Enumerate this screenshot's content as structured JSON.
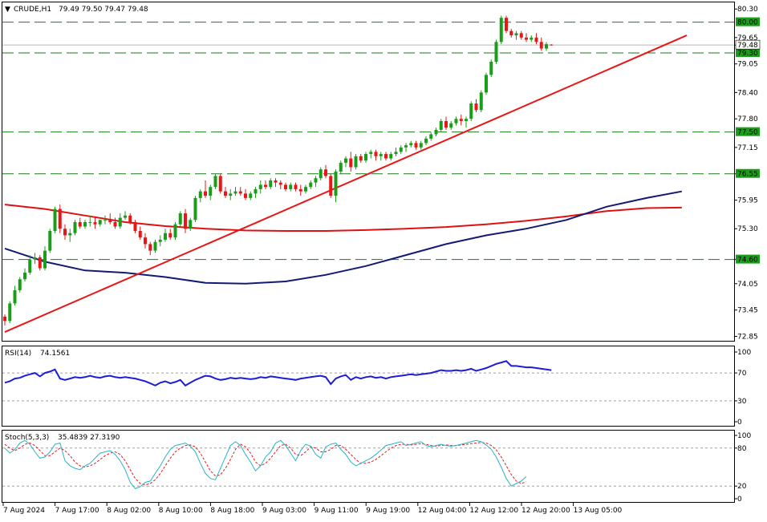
{
  "header": {
    "symbol": "CRUDE,H1",
    "ohlc": "79.49 79.50 79.47 79.48"
  },
  "colors": {
    "up": "#1a9e1a",
    "down": "#e81717",
    "ma_fast": "#131a73",
    "ma_slow": "#dd1111",
    "trendline": "#e81717",
    "rsi": "#1d1dd8",
    "stoch_main": "#26b4c8",
    "stoch_signal": "#e81717",
    "level_line": "#1a7a1a",
    "level_tag_bg": "#1a9e1a",
    "current_tag_bg": "#ffffff"
  },
  "chart_data": [
    {
      "type": "candlestick",
      "title": "CRUDE,H1",
      "ylim": [
        72.75,
        80.45
      ],
      "y_ticks": [
        "80.30",
        "79.65",
        "79.48",
        "79.05",
        "78.40",
        "77.80",
        "77.15",
        "76.55",
        "75.95",
        "75.30",
        "74.60",
        "74.05",
        "73.45",
        "72.85"
      ],
      "price_levels": [
        80.0,
        79.3,
        77.5,
        76.55,
        74.6
      ],
      "level_labels": [
        "80.00",
        "79.30",
        "77.50",
        "76.55",
        "74.60"
      ],
      "current_price": 79.48,
      "current_price_label": "79.48",
      "x_tick_labels": [
        "7 Aug 2024",
        "7 Aug 17:00",
        "8 Aug 02:00",
        "8 Aug 10:00",
        "8 Aug 18:00",
        "9 Aug 03:00",
        "9 Aug 11:00",
        "9 Aug 19:00",
        "12 Aug 04:00",
        "12 Aug 12:00",
        "12 Aug 20:00",
        "13 Aug 05:00"
      ],
      "trendline": [
        [
          0,
          72.95
        ],
        [
          136,
          79.7
        ]
      ],
      "candles": [
        [
          73.3,
          73.35,
          73.1,
          73.2
        ],
        [
          73.2,
          73.65,
          73.15,
          73.6
        ],
        [
          73.6,
          74.0,
          73.55,
          73.9
        ],
        [
          73.9,
          74.2,
          73.85,
          74.15
        ],
        [
          74.15,
          74.4,
          74.1,
          74.3
        ],
        [
          74.3,
          74.7,
          74.25,
          74.6
        ],
        [
          74.6,
          74.75,
          74.5,
          74.65
        ],
        [
          74.65,
          74.7,
          74.35,
          74.4
        ],
        [
          74.4,
          74.9,
          74.35,
          74.8
        ],
        [
          74.8,
          75.3,
          74.75,
          75.25
        ],
        [
          75.25,
          75.8,
          75.2,
          75.75
        ],
        [
          75.75,
          75.85,
          75.2,
          75.3
        ],
        [
          75.3,
          75.4,
          75.05,
          75.15
        ],
        [
          75.15,
          75.3,
          75.0,
          75.2
        ],
        [
          75.2,
          75.5,
          75.15,
          75.45
        ],
        [
          75.45,
          75.55,
          75.3,
          75.35
        ],
        [
          75.35,
          75.5,
          75.3,
          75.45
        ],
        [
          75.45,
          75.6,
          75.35,
          75.45
        ],
        [
          75.45,
          75.55,
          75.3,
          75.4
        ],
        [
          75.4,
          75.5,
          75.35,
          75.5
        ],
        [
          75.5,
          75.6,
          75.4,
          75.5
        ],
        [
          75.5,
          75.65,
          75.4,
          75.45
        ],
        [
          75.45,
          75.55,
          75.3,
          75.35
        ],
        [
          75.35,
          75.65,
          75.3,
          75.55
        ],
        [
          75.55,
          75.7,
          75.5,
          75.6
        ],
        [
          75.6,
          75.65,
          75.4,
          75.45
        ],
        [
          75.45,
          75.5,
          75.2,
          75.25
        ],
        [
          75.25,
          75.35,
          75.05,
          75.1
        ],
        [
          75.1,
          75.2,
          74.85,
          74.95
        ],
        [
          74.95,
          75.0,
          74.7,
          74.8
        ],
        [
          74.8,
          75.05,
          74.75,
          75.0
        ],
        [
          75.0,
          75.15,
          74.9,
          75.05
        ],
        [
          75.05,
          75.3,
          75.0,
          75.2
        ],
        [
          75.2,
          75.3,
          75.05,
          75.1
        ],
        [
          75.1,
          75.45,
          75.05,
          75.4
        ],
        [
          75.4,
          75.7,
          75.35,
          75.65
        ],
        [
          75.65,
          75.75,
          75.2,
          75.3
        ],
        [
          75.3,
          75.55,
          75.25,
          75.5
        ],
        [
          75.5,
          76.05,
          75.45,
          76.0
        ],
        [
          76.0,
          76.2,
          75.9,
          76.15
        ],
        [
          76.15,
          76.4,
          76.0,
          76.05
        ],
        [
          76.05,
          76.3,
          75.95,
          76.25
        ],
        [
          76.25,
          76.55,
          76.2,
          76.5
        ],
        [
          76.5,
          76.55,
          76.1,
          76.15
        ],
        [
          76.15,
          76.25,
          76.0,
          76.05
        ],
        [
          76.05,
          76.2,
          75.95,
          76.1
        ],
        [
          76.1,
          76.25,
          76.05,
          76.15
        ],
        [
          76.15,
          76.25,
          76.05,
          76.1
        ],
        [
          76.1,
          76.2,
          75.95,
          76.0
        ],
        [
          76.0,
          76.15,
          75.95,
          76.1
        ],
        [
          76.1,
          76.25,
          76.0,
          76.2
        ],
        [
          76.2,
          76.4,
          76.1,
          76.3
        ],
        [
          76.3,
          76.4,
          76.2,
          76.25
        ],
        [
          76.25,
          76.45,
          76.2,
          76.4
        ],
        [
          76.4,
          76.45,
          76.25,
          76.35
        ],
        [
          76.35,
          76.4,
          76.2,
          76.3
        ],
        [
          76.3,
          76.35,
          76.15,
          76.2
        ],
        [
          76.2,
          76.35,
          76.15,
          76.3
        ],
        [
          76.3,
          76.35,
          76.15,
          76.2
        ],
        [
          76.2,
          76.3,
          76.05,
          76.15
        ],
        [
          76.15,
          76.3,
          76.1,
          76.25
        ],
        [
          76.25,
          76.4,
          76.2,
          76.35
        ],
        [
          76.35,
          76.5,
          76.25,
          76.45
        ],
        [
          76.45,
          76.7,
          76.4,
          76.65
        ],
        [
          76.65,
          76.75,
          76.45,
          76.5
        ],
        [
          76.5,
          76.55,
          76.0,
          76.05
        ],
        [
          76.05,
          76.65,
          75.9,
          76.6
        ],
        [
          76.6,
          76.85,
          76.55,
          76.8
        ],
        [
          76.8,
          76.95,
          76.7,
          76.9
        ],
        [
          76.9,
          77.05,
          76.6,
          76.7
        ],
        [
          76.7,
          77.0,
          76.65,
          76.95
        ],
        [
          76.95,
          77.0,
          76.8,
          76.85
        ],
        [
          76.85,
          77.05,
          76.8,
          77.0
        ],
        [
          77.0,
          77.1,
          76.9,
          77.05
        ],
        [
          77.05,
          77.1,
          76.85,
          76.95
        ],
        [
          76.95,
          77.05,
          76.85,
          77.0
        ],
        [
          77.0,
          77.05,
          76.85,
          76.9
        ],
        [
          76.9,
          77.05,
          76.85,
          77.0
        ],
        [
          77.0,
          77.15,
          76.95,
          77.05
        ],
        [
          77.05,
          77.2,
          77.0,
          77.15
        ],
        [
          77.15,
          77.25,
          77.05,
          77.2
        ],
        [
          77.2,
          77.3,
          77.15,
          77.25
        ],
        [
          77.25,
          77.3,
          77.1,
          77.15
        ],
        [
          77.15,
          77.3,
          77.1,
          77.25
        ],
        [
          77.25,
          77.4,
          77.2,
          77.35
        ],
        [
          77.35,
          77.5,
          77.3,
          77.45
        ],
        [
          77.45,
          77.6,
          77.4,
          77.55
        ],
        [
          77.55,
          77.8,
          77.5,
          77.75
        ],
        [
          77.75,
          77.85,
          77.55,
          77.6
        ],
        [
          77.6,
          77.75,
          77.55,
          77.7
        ],
        [
          77.7,
          77.85,
          77.65,
          77.8
        ],
        [
          77.8,
          77.9,
          77.65,
          77.75
        ],
        [
          77.75,
          77.85,
          77.6,
          77.8
        ],
        [
          77.8,
          78.2,
          77.75,
          78.15
        ],
        [
          78.15,
          78.25,
          77.95,
          78.0
        ],
        [
          78.0,
          78.45,
          77.95,
          78.4
        ],
        [
          78.4,
          78.85,
          78.35,
          78.8
        ],
        [
          78.8,
          79.15,
          78.75,
          79.1
        ],
        [
          79.1,
          79.6,
          79.05,
          79.55
        ],
        [
          79.55,
          80.15,
          79.5,
          80.1
        ],
        [
          80.1,
          80.15,
          79.75,
          79.8
        ],
        [
          79.8,
          79.85,
          79.65,
          79.7
        ],
        [
          79.7,
          79.8,
          79.6,
          79.75
        ],
        [
          79.75,
          79.8,
          79.6,
          79.65
        ],
        [
          79.65,
          79.75,
          79.55,
          79.6
        ],
        [
          79.6,
          79.7,
          79.55,
          79.65
        ],
        [
          79.65,
          79.75,
          79.5,
          79.55
        ],
        [
          79.55,
          79.65,
          79.35,
          79.4
        ],
        [
          79.4,
          79.55,
          79.35,
          79.5
        ],
        [
          79.49,
          79.5,
          79.47,
          79.48
        ]
      ],
      "ma_fast": [
        [
          0,
          74.85
        ],
        [
          8,
          74.55
        ],
        [
          16,
          74.35
        ],
        [
          24,
          74.3
        ],
        [
          32,
          74.2
        ],
        [
          40,
          74.07
        ],
        [
          48,
          74.05
        ],
        [
          56,
          74.1
        ],
        [
          64,
          74.25
        ],
        [
          72,
          74.45
        ],
        [
          80,
          74.7
        ],
        [
          88,
          74.95
        ],
        [
          96,
          75.15
        ],
        [
          104,
          75.3
        ],
        [
          112,
          75.5
        ],
        [
          120,
          75.8
        ],
        [
          128,
          76.0
        ],
        [
          135,
          76.15
        ]
      ],
      "ma_slow": [
        [
          0,
          75.85
        ],
        [
          8,
          75.75
        ],
        [
          16,
          75.6
        ],
        [
          24,
          75.45
        ],
        [
          32,
          75.36
        ],
        [
          40,
          75.3
        ],
        [
          48,
          75.26
        ],
        [
          56,
          75.25
        ],
        [
          64,
          75.25
        ],
        [
          72,
          75.27
        ],
        [
          80,
          75.3
        ],
        [
          88,
          75.34
        ],
        [
          96,
          75.4
        ],
        [
          104,
          75.48
        ],
        [
          112,
          75.58
        ],
        [
          120,
          75.7
        ],
        [
          128,
          75.77
        ],
        [
          135,
          75.78
        ]
      ]
    },
    {
      "type": "line",
      "title": "RSI(14)",
      "value_label": "74.1561",
      "ylim": [
        0,
        100
      ],
      "y_ticks": [
        "100",
        "70",
        "30",
        "0"
      ],
      "levels": [
        70,
        30
      ],
      "series": [
        {
          "name": "RSI(14)",
          "values": [
            56,
            58,
            62,
            63,
            66,
            68,
            70,
            65,
            70,
            72,
            75,
            62,
            60,
            62,
            64,
            63,
            64,
            66,
            64,
            63,
            65,
            66,
            64,
            63,
            64,
            63,
            62,
            60,
            58,
            55,
            52,
            56,
            58,
            55,
            57,
            60,
            52,
            56,
            60,
            63,
            66,
            65,
            62,
            60,
            61,
            63,
            62,
            63,
            62,
            61,
            62,
            64,
            63,
            65,
            64,
            63,
            62,
            61,
            60,
            62,
            63,
            64,
            65,
            66,
            64,
            54,
            62,
            65,
            67,
            60,
            64,
            62,
            64,
            65,
            63,
            64,
            62,
            64,
            65,
            66,
            67,
            68,
            67,
            68,
            69,
            70,
            72,
            74,
            73,
            73,
            74,
            73,
            74,
            76,
            73,
            75,
            77,
            80,
            83,
            85,
            87,
            80,
            80,
            79,
            78,
            78,
            77,
            76,
            75,
            74
          ]
        }
      ]
    },
    {
      "type": "line",
      "title": "Stoch(5,3,3)",
      "value_label": "35.4839 27.3190",
      "ylim": [
        0,
        100
      ],
      "y_ticks": [
        "100",
        "80",
        "20",
        "0"
      ],
      "levels": [
        80,
        20
      ],
      "series": [
        {
          "name": "main",
          "values": [
            80,
            72,
            78,
            88,
            92,
            86,
            74,
            64,
            66,
            74,
            86,
            88,
            60,
            52,
            48,
            46,
            52,
            56,
            64,
            72,
            74,
            76,
            70,
            60,
            46,
            26,
            16,
            19,
            26,
            28,
            40,
            52,
            66,
            78,
            84,
            86,
            88,
            83,
            74,
            56,
            40,
            32,
            30,
            48,
            66,
            84,
            90,
            84,
            70,
            58,
            44,
            52,
            66,
            74,
            88,
            92,
            84,
            72,
            60,
            76,
            86,
            83,
            70,
            64,
            82,
            86,
            88,
            78,
            70,
            58,
            52,
            56,
            60,
            64,
            70,
            77,
            84,
            86,
            88,
            90,
            84,
            86,
            88,
            90,
            84,
            82,
            84,
            86,
            84,
            83,
            84,
            86,
            88,
            90,
            92,
            90,
            85,
            78,
            66,
            50,
            32,
            20,
            24,
            28,
            35
          ]
        },
        {
          "name": "signal",
          "values": [
            86,
            80,
            76,
            80,
            86,
            88,
            84,
            76,
            68,
            68,
            74,
            80,
            76,
            68,
            58,
            52,
            50,
            52,
            56,
            62,
            68,
            72,
            74,
            70,
            60,
            46,
            32,
            24,
            22,
            24,
            30,
            40,
            52,
            64,
            74,
            80,
            84,
            85,
            82,
            72,
            58,
            44,
            36,
            38,
            48,
            62,
            78,
            86,
            82,
            72,
            58,
            52,
            56,
            64,
            74,
            84,
            86,
            80,
            70,
            68,
            74,
            82,
            80,
            74,
            74,
            78,
            84,
            84,
            78,
            70,
            62,
            56,
            56,
            58,
            62,
            68,
            74,
            80,
            84,
            86,
            86,
            85,
            86,
            87,
            86,
            84,
            83,
            84,
            85,
            84,
            84,
            85,
            86,
            87,
            88,
            89,
            88,
            84,
            77,
            66,
            52,
            38,
            28,
            24,
            27
          ]
        }
      ]
    }
  ]
}
